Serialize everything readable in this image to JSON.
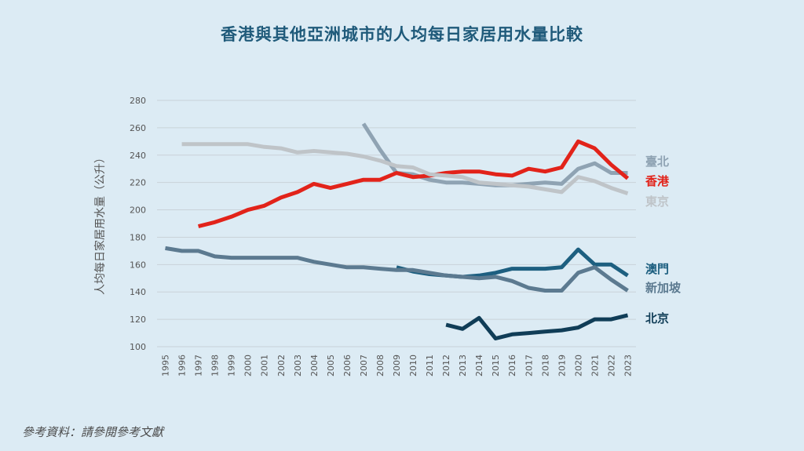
{
  "title": "香港與其他亞洲城市的人均每日家居用水量比較",
  "source": "參考資料：請參閱參考文獻",
  "colors": {
    "background": "#dcebf4",
    "title": "#1f5a7a",
    "hong_kong": "#e2231a",
    "taipei": "#8fa3b3",
    "tokyo": "#bfc4c8",
    "macau": "#1d5f80",
    "singapore": "#5c7a90",
    "beijing": "#103d57"
  },
  "chart_data": {
    "type": "line",
    "ylabel": "人均每日家居用水量（公升）",
    "xlabel": "",
    "ylim": [
      100,
      280
    ],
    "yticks": [
      100,
      120,
      140,
      160,
      180,
      200,
      220,
      240,
      260,
      280
    ],
    "x": [
      "1995",
      "1996",
      "1997",
      "1998",
      "1999",
      "2000",
      "2001",
      "2002",
      "2003",
      "2004",
      "2005",
      "2006",
      "2007",
      "2008",
      "2009",
      "2010",
      "2011",
      "2012",
      "2013",
      "2014",
      "2015",
      "2016",
      "2017",
      "2018",
      "2019",
      "2020",
      "2021",
      "2022",
      "2023"
    ],
    "grid": true,
    "legend": "right, labels at line ends",
    "series": [
      {
        "name": "臺北",
        "color_key": "taipei",
        "values": [
          null,
          null,
          null,
          null,
          null,
          null,
          null,
          null,
          null,
          null,
          null,
          null,
          263,
          244,
          227,
          226,
          222,
          220,
          220,
          219,
          218,
          218,
          219,
          220,
          219,
          230,
          234,
          227,
          227
        ]
      },
      {
        "name": "香港",
        "color_key": "hong_kong",
        "values": [
          null,
          null,
          188,
          191,
          195,
          200,
          203,
          209,
          213,
          219,
          216,
          219,
          222,
          222,
          227,
          224,
          225,
          227,
          228,
          228,
          226,
          225,
          230,
          228,
          231,
          250,
          245,
          233,
          223
        ]
      },
      {
        "name": "東京",
        "color_key": "tokyo",
        "values": [
          null,
          248,
          248,
          248,
          248,
          248,
          246,
          245,
          242,
          243,
          242,
          241,
          239,
          236,
          232,
          231,
          226,
          225,
          224,
          220,
          219,
          218,
          217,
          215,
          213,
          224,
          221,
          216,
          212
        ]
      },
      {
        "name": "澳門",
        "color_key": "macau",
        "values": [
          null,
          null,
          null,
          null,
          null,
          null,
          null,
          null,
          null,
          null,
          null,
          null,
          null,
          null,
          158,
          155,
          153,
          152,
          151,
          152,
          154,
          157,
          157,
          157,
          158,
          171,
          160,
          160,
          152
        ]
      },
      {
        "name": "新加坡",
        "color_key": "singapore",
        "values": [
          172,
          170,
          170,
          166,
          165,
          165,
          165,
          165,
          165,
          162,
          160,
          158,
          158,
          157,
          156,
          156,
          154,
          152,
          151,
          150,
          151,
          148,
          143,
          141,
          141,
          154,
          158,
          149,
          141
        ]
      },
      {
        "name": "北京",
        "color_key": "beijing",
        "values": [
          null,
          null,
          null,
          null,
          null,
          null,
          null,
          null,
          null,
          null,
          null,
          null,
          null,
          null,
          null,
          null,
          null,
          116,
          113,
          121,
          106,
          109,
          110,
          111,
          112,
          114,
          120,
          120,
          123
        ]
      }
    ]
  }
}
